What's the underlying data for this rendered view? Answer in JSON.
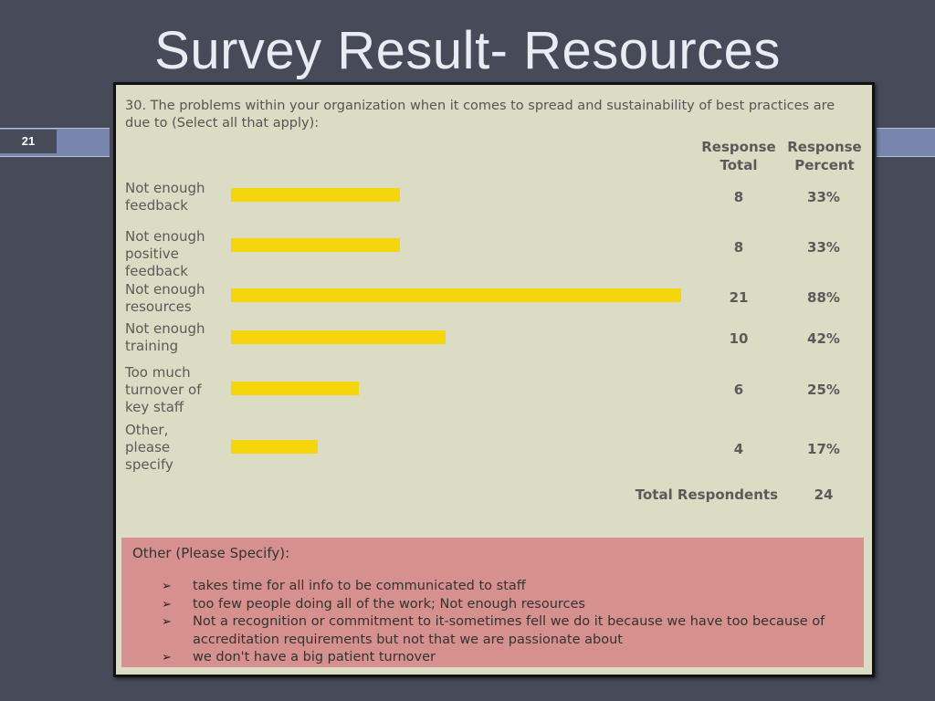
{
  "slide": {
    "title": "Survey Result- Resources",
    "number": "21"
  },
  "chart_data": {
    "type": "bar",
    "orientation": "horizontal",
    "title": "30.  The problems within your organization when it comes to spread and sustainability of best practices are due to (Select all that apply):",
    "column_headers": {
      "total": [
        "Response",
        "Total"
      ],
      "percent": [
        "Response",
        "Percent"
      ]
    },
    "categories": [
      [
        "Not enough",
        "feedback"
      ],
      [
        "Not enough",
        "positive",
        "feedback"
      ],
      [
        "Not enough",
        "resources"
      ],
      [
        "Not enough",
        "training"
      ],
      [
        "Too much",
        "turnover of",
        "key staff"
      ],
      [
        "Other,",
        "please",
        "specify"
      ]
    ],
    "totals": [
      8,
      8,
      21,
      10,
      6,
      4
    ],
    "percent_labels": [
      "33%",
      "33%",
      "88%",
      "42%",
      "25%",
      "17%"
    ],
    "percent_values": [
      33,
      33,
      88,
      42,
      25,
      17
    ],
    "xlim": [
      0,
      100
    ],
    "bar_color": "#f5d60d",
    "total_respondents_label": "Total Respondents",
    "total_respondents": 24
  },
  "other": {
    "title": "Other (Please Specify):",
    "bullet": "➢",
    "items": [
      "takes time for all info to be communicated to staff",
      "too few people doing all of the work; Not enough resources",
      "Not a recognition or commitment to it-sometimes fell we do it because we have too because of accreditation requirements but not that we are passionate about",
      "we don't have a big patient turnover"
    ]
  }
}
